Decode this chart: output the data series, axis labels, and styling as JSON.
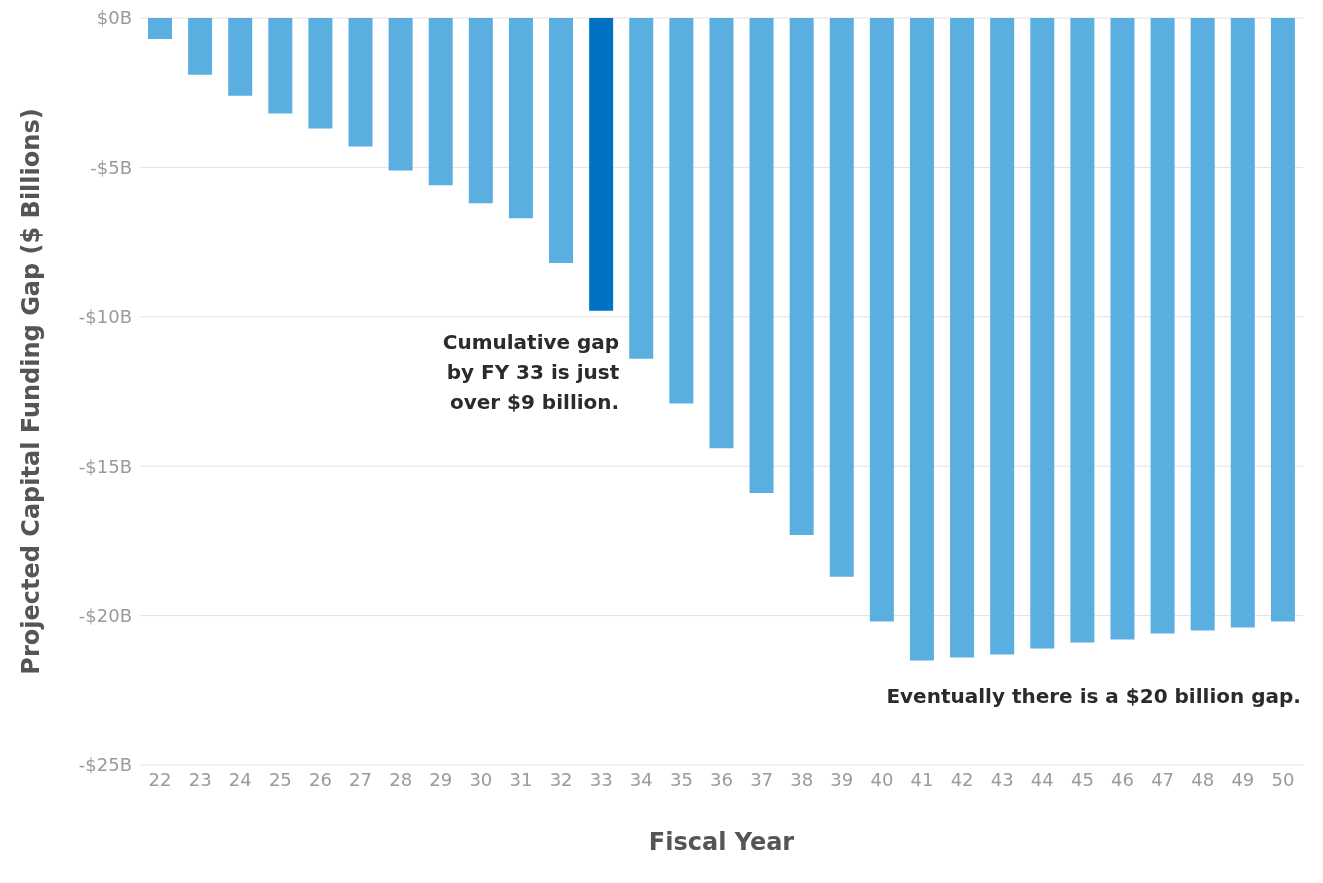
{
  "chart_data": {
    "type": "bar",
    "xlabel": "Fiscal Year",
    "ylabel": "Projected Capital Funding Gap ($ Billions)",
    "categories": [
      "22",
      "23",
      "24",
      "25",
      "26",
      "27",
      "28",
      "29",
      "30",
      "31",
      "32",
      "33",
      "34",
      "35",
      "36",
      "37",
      "38",
      "39",
      "40",
      "41",
      "42",
      "43",
      "44",
      "45",
      "46",
      "47",
      "48",
      "49",
      "50"
    ],
    "values": [
      -0.7,
      -1.9,
      -2.6,
      -3.2,
      -3.7,
      -4.3,
      -5.1,
      -5.6,
      -6.2,
      -6.7,
      -8.2,
      -9.8,
      -11.4,
      -12.9,
      -14.4,
      -15.9,
      -17.3,
      -18.7,
      -20.2,
      -21.5,
      -21.4,
      -21.3,
      -21.1,
      -20.9,
      -20.8,
      -20.6,
      -20.5,
      -20.4,
      -20.2
    ],
    "colors": [
      "#5aafe0",
      "#5aafe0",
      "#5aafe0",
      "#5aafe0",
      "#5aafe0",
      "#5aafe0",
      "#5aafe0",
      "#5aafe0",
      "#5aafe0",
      "#5aafe0",
      "#5aafe0",
      "#0072c3",
      "#5aafe0",
      "#5aafe0",
      "#5aafe0",
      "#5aafe0",
      "#5aafe0",
      "#5aafe0",
      "#5aafe0",
      "#5aafe0",
      "#5aafe0",
      "#5aafe0",
      "#5aafe0",
      "#5aafe0",
      "#5aafe0",
      "#5aafe0",
      "#5aafe0",
      "#5aafe0",
      "#5aafe0"
    ],
    "ylim": [
      -25,
      0
    ],
    "yticks": [
      {
        "value": 0,
        "label": "$0B"
      },
      {
        "value": -5,
        "label": "-$5B"
      },
      {
        "value": -10,
        "label": "-$10B"
      },
      {
        "value": -15,
        "label": "-$15B"
      },
      {
        "value": -20,
        "label": "-$20B"
      },
      {
        "value": -25,
        "label": "-$25B"
      }
    ],
    "grid": "y",
    "annotations": [
      {
        "text": "Cumulative gap by FY 33 is just over $9 billion.",
        "x": "33",
        "y": -9.8
      },
      "Eventually there is a $20 billion gap."
    ]
  }
}
